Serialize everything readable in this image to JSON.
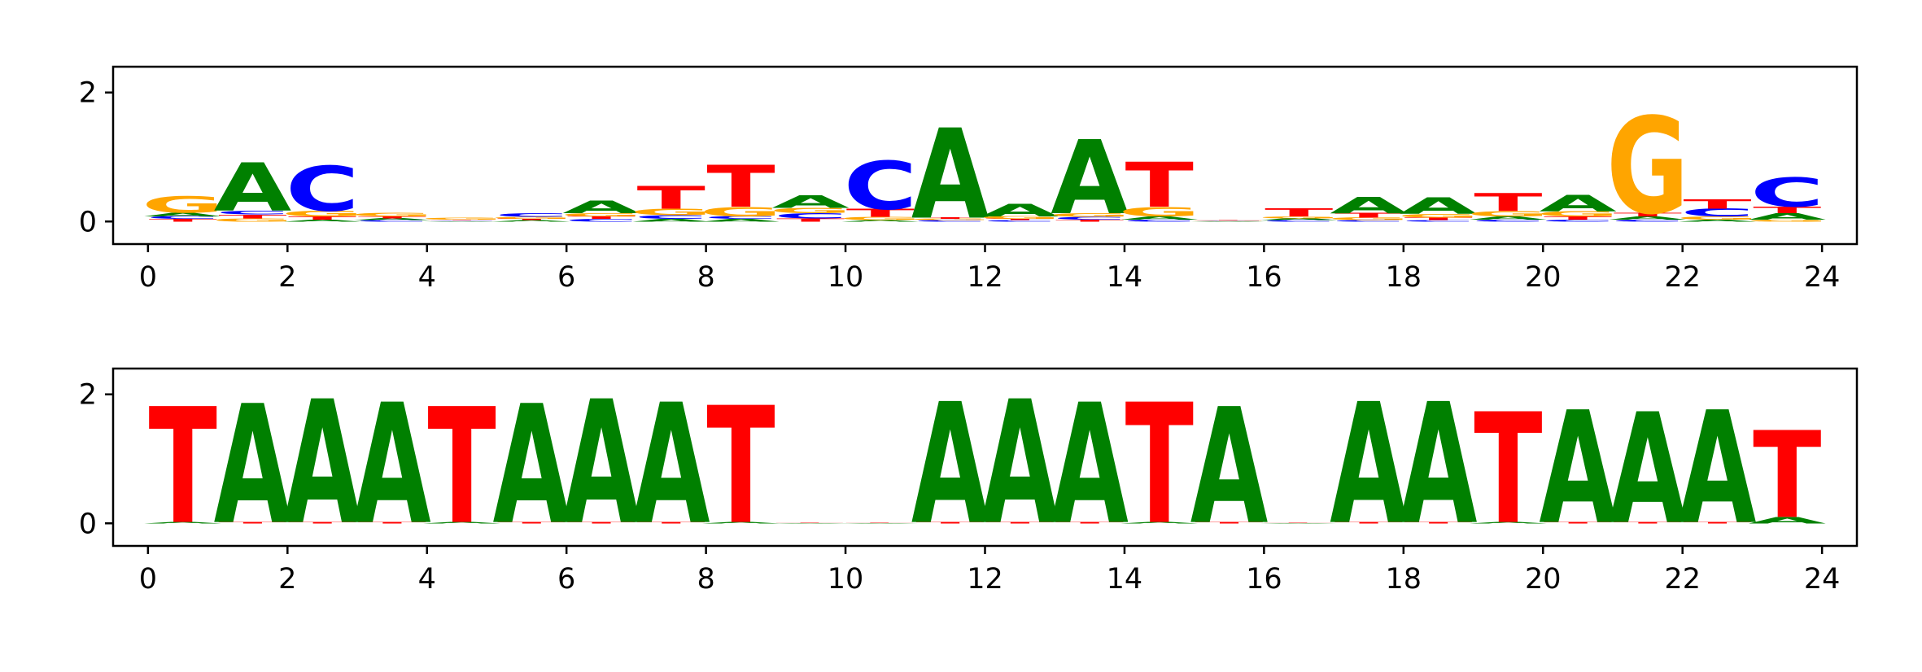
{
  "chart_data": [
    {
      "type": "sequence-logo",
      "alphabet": [
        "A",
        "C",
        "G",
        "T"
      ],
      "colors": {
        "A": "#008000",
        "C": "#0000ff",
        "G": "#ffa500",
        "T": "#ff0000"
      },
      "xlim": [
        -0.5,
        24.5
      ],
      "ylim": [
        -0.35,
        2.4
      ],
      "xticks": [
        0,
        2,
        4,
        6,
        8,
        10,
        12,
        14,
        16,
        18,
        20,
        22,
        24
      ],
      "yticks": [
        0,
        2
      ],
      "positions": [
        {
          "x": 0.5,
          "heights": {
            "T": 0.04,
            "C": 0.04,
            "A": 0.06,
            "G": 0.25
          }
        },
        {
          "x": 1.5,
          "heights": {
            "G": 0.05,
            "T": 0.06,
            "C": 0.06,
            "A": 0.75
          }
        },
        {
          "x": 2.5,
          "heights": {
            "A": 0.03,
            "T": 0.05,
            "G": 0.09,
            "C": 0.7
          }
        },
        {
          "x": 3.5,
          "heights": {
            "C": 0.02,
            "A": 0.03,
            "T": 0.03,
            "G": 0.06
          }
        },
        {
          "x": 4.5,
          "heights": {
            "A": 0.01,
            "C": 0.01,
            "T": 0.01,
            "G": 0.03
          }
        },
        {
          "x": 5.5,
          "heights": {
            "A": 0.02,
            "T": 0.02,
            "G": 0.03,
            "C": 0.06
          }
        },
        {
          "x": 6.5,
          "heights": {
            "C": 0.04,
            "T": 0.04,
            "G": 0.05,
            "A": 0.2
          }
        },
        {
          "x": 7.5,
          "heights": {
            "A": 0.04,
            "C": 0.06,
            "G": 0.1,
            "T": 0.35
          }
        },
        {
          "x": 8.5,
          "heights": {
            "A": 0.04,
            "C": 0.04,
            "G": 0.15,
            "T": 0.65
          }
        },
        {
          "x": 9.5,
          "heights": {
            "T": 0.05,
            "C": 0.08,
            "G": 0.08,
            "A": 0.2
          }
        },
        {
          "x": 10.5,
          "heights": {
            "A": 0.02,
            "G": 0.05,
            "T": 0.12,
            "C": 0.75
          }
        },
        {
          "x": 11.5,
          "heights": {
            "C": 0.02,
            "G": 0.02,
            "T": 0.02,
            "A": 1.4
          }
        },
        {
          "x": 12.5,
          "heights": {
            "C": 0.02,
            "T": 0.02,
            "G": 0.04,
            "A": 0.2
          }
        },
        {
          "x": 13.5,
          "heights": {
            "T": 0.03,
            "C": 0.04,
            "G": 0.06,
            "A": 1.15
          }
        },
        {
          "x": 14.5,
          "heights": {
            "C": 0.03,
            "A": 0.05,
            "G": 0.15,
            "T": 0.7
          }
        },
        {
          "x": 15.5,
          "heights": {
            "A": 0.005,
            "C": 0.005,
            "G": 0.005,
            "T": 0.005
          }
        },
        {
          "x": 16.5,
          "heights": {
            "C": 0.02,
            "A": 0.03,
            "G": 0.03,
            "T": 0.12
          }
        },
        {
          "x": 17.5,
          "heights": {
            "C": 0.02,
            "G": 0.04,
            "T": 0.07,
            "A": 0.25
          }
        },
        {
          "x": 18.5,
          "heights": {
            "C": 0.02,
            "T": 0.04,
            "G": 0.06,
            "A": 0.25
          }
        },
        {
          "x": 19.5,
          "heights": {
            "C": 0.03,
            "A": 0.05,
            "G": 0.08,
            "T": 0.28
          }
        },
        {
          "x": 20.5,
          "heights": {
            "C": 0.03,
            "T": 0.05,
            "G": 0.08,
            "A": 0.25
          }
        },
        {
          "x": 21.5,
          "heights": {
            "C": 0.03,
            "A": 0.05,
            "T": 0.06,
            "G": 1.5
          }
        },
        {
          "x": 22.5,
          "heights": {
            "A": 0.03,
            "G": 0.05,
            "C": 0.12,
            "T": 0.15
          }
        },
        {
          "x": 23.5,
          "heights": {
            "G": 0.03,
            "A": 0.1,
            "T": 0.1,
            "C": 0.45
          }
        }
      ]
    },
    {
      "type": "sequence-logo",
      "alphabet": [
        "A",
        "C",
        "G",
        "T"
      ],
      "colors": {
        "A": "#008000",
        "C": "#0000ff",
        "G": "#ffa500",
        "T": "#ff0000"
      },
      "xlim": [
        -0.5,
        24.5
      ],
      "ylim": [
        -0.35,
        2.4
      ],
      "xticks": [
        0,
        2,
        4,
        6,
        8,
        10,
        12,
        14,
        16,
        18,
        20,
        22,
        24
      ],
      "yticks": [
        0,
        2
      ],
      "positions": [
        {
          "x": 0.5,
          "heights": {
            "A": 0.02,
            "T": 1.8
          }
        },
        {
          "x": 1.5,
          "heights": {
            "T": 0.02,
            "A": 1.85
          }
        },
        {
          "x": 2.5,
          "heights": {
            "T": 0.02,
            "A": 1.92
          }
        },
        {
          "x": 3.5,
          "heights": {
            "T": 0.02,
            "A": 1.87
          }
        },
        {
          "x": 4.5,
          "heights": {
            "A": 0.02,
            "T": 1.8
          }
        },
        {
          "x": 5.5,
          "heights": {
            "T": 0.02,
            "A": 1.85
          }
        },
        {
          "x": 6.5,
          "heights": {
            "T": 0.02,
            "A": 1.92
          }
        },
        {
          "x": 7.5,
          "heights": {
            "T": 0.02,
            "A": 1.87
          }
        },
        {
          "x": 8.5,
          "heights": {
            "A": 0.02,
            "T": 1.82
          }
        },
        {
          "x": 9.5,
          "heights": {
            "A": 0.005,
            "T": 0.005
          }
        },
        {
          "x": 10.5,
          "heights": {
            "A": 0.005,
            "T": 0.005
          }
        },
        {
          "x": 11.5,
          "heights": {
            "T": 0.02,
            "A": 1.88
          }
        },
        {
          "x": 12.5,
          "heights": {
            "T": 0.02,
            "A": 1.92
          }
        },
        {
          "x": 13.5,
          "heights": {
            "T": 0.02,
            "A": 1.87
          }
        },
        {
          "x": 14.5,
          "heights": {
            "A": 0.02,
            "T": 1.87
          }
        },
        {
          "x": 15.5,
          "heights": {
            "T": 0.02,
            "A": 1.8
          }
        },
        {
          "x": 16.5,
          "heights": {
            "A": 0.005,
            "T": 0.005
          }
        },
        {
          "x": 17.5,
          "heights": {
            "T": 0.02,
            "A": 1.88
          }
        },
        {
          "x": 18.5,
          "heights": {
            "T": 0.02,
            "A": 1.88
          }
        },
        {
          "x": 19.5,
          "heights": {
            "A": 0.02,
            "T": 1.72
          }
        },
        {
          "x": 20.5,
          "heights": {
            "T": 0.02,
            "A": 1.75
          }
        },
        {
          "x": 21.5,
          "heights": {
            "T": 0.02,
            "A": 1.72
          }
        },
        {
          "x": 22.5,
          "heights": {
            "T": 0.02,
            "A": 1.75
          }
        },
        {
          "x": 23.5,
          "heights": {
            "A": 0.1,
            "T": 1.35
          }
        }
      ]
    }
  ]
}
